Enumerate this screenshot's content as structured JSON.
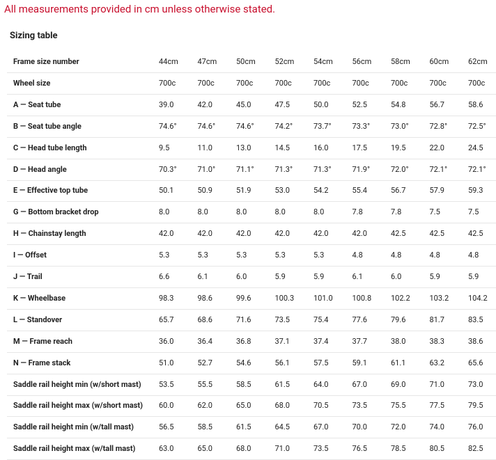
{
  "note": "All measurements provided in cm unless otherwise stated.",
  "heading": "Sizing table",
  "table": {
    "rows": [
      [
        "Frame size number",
        "44cm",
        "47cm",
        "50cm",
        "52cm",
        "54cm",
        "56cm",
        "58cm",
        "60cm",
        "62cm"
      ],
      [
        "Wheel size",
        "700c",
        "700c",
        "700c",
        "700c",
        "700c",
        "700c",
        "700c",
        "700c",
        "700c"
      ],
      [
        "A — Seat tube",
        "39.0",
        "42.0",
        "45.0",
        "47.5",
        "50.0",
        "52.5",
        "54.8",
        "56.7",
        "58.6"
      ],
      [
        "B — Seat tube angle",
        "74.6°",
        "74.6°",
        "74.6°",
        "74.2°",
        "73.7°",
        "73.3°",
        "73.0°",
        "72.8°",
        "72.5°"
      ],
      [
        "C — Head tube length",
        "9.5",
        "11.0",
        "13.0",
        "14.5",
        "16.0",
        "17.5",
        "19.5",
        "22.0",
        "24.5"
      ],
      [
        "D — Head angle",
        "70.3°",
        "71.0°",
        "71.1°",
        "71.3°",
        "71.3°",
        "71.9°",
        "72.0°",
        "72.1°",
        "72.1°"
      ],
      [
        "E — Effective top tube",
        "50.1",
        "50.9",
        "51.9",
        "53.0",
        "54.2",
        "55.4",
        "56.7",
        "57.9",
        "59.3"
      ],
      [
        "G — Bottom bracket drop",
        "8.0",
        "8.0",
        "8.0",
        "8.0",
        "8.0",
        "7.8",
        "7.8",
        "7.5",
        "7.5"
      ],
      [
        "H — Chainstay length",
        "42.0",
        "42.0",
        "42.0",
        "42.0",
        "42.0",
        "42.0",
        "42.5",
        "42.5",
        "42.5"
      ],
      [
        "I — Offset",
        "5.3",
        "5.3",
        "5.3",
        "5.3",
        "5.3",
        "4.8",
        "4.8",
        "4.8",
        "4.8"
      ],
      [
        "J — Trail",
        "6.6",
        "6.1",
        "6.0",
        "5.9",
        "5.9",
        "6.1",
        "6.0",
        "5.9",
        "5.9"
      ],
      [
        "K — Wheelbase",
        "98.3",
        "98.6",
        "99.6",
        "100.3",
        "101.0",
        "100.8",
        "102.2",
        "103.2",
        "104.2"
      ],
      [
        "L — Standover",
        "65.7",
        "68.6",
        "71.6",
        "73.5",
        "75.4",
        "77.6",
        "79.6",
        "81.7",
        "83.5"
      ],
      [
        "M — Frame reach",
        "36.0",
        "36.4",
        "36.8",
        "37.1",
        "37.4",
        "37.7",
        "38.0",
        "38.3",
        "38.6"
      ],
      [
        "N — Frame stack",
        "51.0",
        "52.7",
        "54.6",
        "56.1",
        "57.5",
        "59.1",
        "61.1",
        "63.2",
        "65.6"
      ],
      [
        "Saddle rail height min (w/short mast)",
        "53.5",
        "55.5",
        "58.5",
        "61.5",
        "64.0",
        "67.0",
        "69.0",
        "71.0",
        "73.0"
      ],
      [
        "Saddle rail height max (w/short mast)",
        "60.0",
        "62.0",
        "65.0",
        "68.0",
        "70.5",
        "73.5",
        "75.5",
        "77.5",
        "79.5"
      ],
      [
        "Saddle rail height min (w/tall mast)",
        "56.5",
        "58.5",
        "61.5",
        "64.5",
        "67.0",
        "70.0",
        "72.0",
        "74.0",
        "76.0"
      ],
      [
        "Saddle rail height max (w/tall mast)",
        "63.0",
        "65.0",
        "68.0",
        "71.0",
        "73.5",
        "76.5",
        "78.5",
        "80.5",
        "82.5"
      ]
    ]
  }
}
